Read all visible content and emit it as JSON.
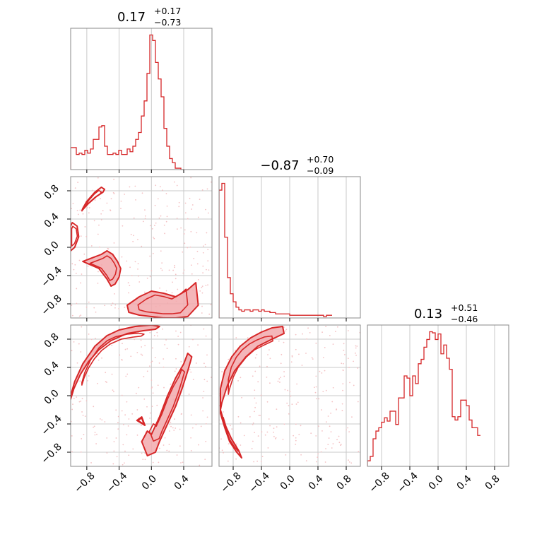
{
  "chart_data": {
    "type": "corner",
    "color": "#d62728",
    "fill_color": "#f2a9ad",
    "grid": true,
    "range": [
      -1.0,
      1.0
    ],
    "tick_labels": [
      "−0.8",
      "−0.4",
      "0.0",
      "0.4",
      "0.8"
    ],
    "tick_values": [
      -0.8,
      -0.4,
      0.0,
      0.4,
      0.8
    ],
    "panels": [
      {
        "name": "hist-param-1",
        "type": "histogram",
        "x_range": [
          -1.0,
          0.75
        ],
        "title": {
          "main": "0.17",
          "upper": "+0.17",
          "lower": "−0.73"
        },
        "bin_edges_start": -1.0,
        "bin_width": 0.035,
        "counts": [
          16,
          16,
          11,
          12,
          11,
          14,
          12,
          15,
          22,
          22,
          31,
          32,
          17,
          11,
          11,
          12,
          11,
          14,
          11,
          11,
          15,
          13,
          17,
          22,
          27,
          39,
          50,
          70,
          98,
          94,
          78,
          66,
          53,
          30,
          17,
          8,
          5,
          1,
          1,
          0
        ]
      },
      {
        "name": "hist-param-2",
        "type": "histogram",
        "x_range": [
          -1.0,
          1.0
        ],
        "title": {
          "main": "−0.87",
          "upper": "+0.70",
          "lower": "−0.09"
        },
        "bin_edges_start": -1.0,
        "bin_width": 0.04,
        "counts": [
          95,
          100,
          60,
          30,
          18,
          12,
          8,
          6,
          5,
          6,
          6,
          5,
          6,
          6,
          5,
          6,
          5,
          5,
          4,
          4,
          3,
          3,
          3,
          3,
          3,
          2,
          2,
          2,
          2,
          2,
          2,
          2,
          2,
          2,
          2,
          2,
          2,
          1,
          2,
          2
        ]
      },
      {
        "name": "hist-param-3",
        "type": "histogram",
        "x_range": [
          -1.0,
          1.0
        ],
        "title": {
          "main": "0.13",
          "upper": "+0.51",
          "lower": "−0.46"
        },
        "bin_edges_start": -1.0,
        "bin_width": 0.04,
        "counts": [
          5,
          9,
          25,
          32,
          35,
          40,
          44,
          41,
          50,
          50,
          38,
          62,
          62,
          82,
          80,
          64,
          82,
          75,
          93,
          97,
          108,
          115,
          122,
          121,
          115,
          120,
          102,
          110,
          98,
          88,
          45,
          42,
          45,
          60,
          60,
          55,
          42,
          35,
          35,
          28
        ]
      },
      {
        "name": "contour-param2-vs-param1",
        "type": "contour",
        "x_range": [
          -1.0,
          0.75
        ],
        "y_range": [
          -1.0,
          1.0
        ],
        "regions": [
          {
            "x": [
              -0.85,
              -0.75,
              -0.65,
              -0.55,
              -0.5,
              -0.45,
              -0.4,
              -0.38,
              -0.42,
              -0.48,
              -0.55,
              -0.62
            ],
            "y": [
              -0.2,
              -0.25,
              -0.3,
              -0.45,
              -0.55,
              -0.52,
              -0.42,
              -0.3,
              -0.2,
              -0.1,
              -0.05,
              -0.1
            ],
            "fill": true
          },
          {
            "x": [
              -0.3,
              -0.15,
              0.0,
              0.15,
              0.3,
              0.45,
              0.55,
              0.58,
              0.45,
              0.3,
              0.15,
              0.0,
              -0.15,
              -0.28
            ],
            "y": [
              -0.82,
              -0.7,
              -0.62,
              -0.65,
              -0.7,
              -0.6,
              -0.5,
              -0.82,
              -0.98,
              -1.0,
              -1.0,
              -0.98,
              -0.96,
              -0.92
            ],
            "fill": true
          },
          {
            "x": [
              -1.0,
              -0.95,
              -0.9,
              -0.92,
              -0.98,
              -1.0
            ],
            "y": [
              -0.05,
              0.0,
              0.15,
              0.3,
              0.35,
              0.3
            ],
            "fill": false
          },
          {
            "x": [
              -0.85,
              -0.8,
              -0.7,
              -0.62,
              -0.58,
              -0.6,
              -0.68,
              -0.78,
              -0.86
            ],
            "y": [
              0.55,
              0.65,
              0.78,
              0.85,
              0.82,
              0.78,
              0.72,
              0.62,
              0.52
            ],
            "fill": false
          }
        ],
        "samples_seed": 11
      },
      {
        "name": "contour-param3-vs-param1",
        "type": "contour",
        "x_range": [
          -1.0,
          0.75
        ],
        "y_range": [
          -1.0,
          1.0
        ],
        "regions": [
          {
            "x": [
              -1.0,
              -0.95,
              -0.85,
              -0.7,
              -0.55,
              -0.4,
              -0.2,
              0.0,
              0.1,
              0.05,
              -0.1,
              -0.3,
              -0.5,
              -0.65,
              -0.78,
              -0.88,
              -0.96,
              -1.0
            ],
            "y": [
              0.0,
              0.2,
              0.45,
              0.7,
              0.85,
              0.93,
              0.98,
              1.0,
              0.98,
              0.94,
              0.92,
              0.88,
              0.78,
              0.65,
              0.48,
              0.3,
              0.1,
              -0.05
            ],
            "fill": true
          },
          {
            "x": [
              0.0,
              0.1,
              0.2,
              0.3,
              0.4,
              0.45,
              0.5,
              0.45,
              0.38,
              0.3,
              0.2,
              0.1,
              0.05,
              -0.05,
              -0.12,
              -0.05
            ],
            "y": [
              -0.55,
              -0.3,
              0.0,
              0.25,
              0.45,
              0.6,
              0.55,
              0.35,
              0.1,
              -0.15,
              -0.4,
              -0.65,
              -0.8,
              -0.85,
              -0.65,
              -0.5
            ],
            "fill": true
          },
          {
            "x": [
              -0.18,
              -0.12,
              -0.08
            ],
            "y": [
              -0.35,
              -0.3,
              -0.42
            ],
            "fill": false
          }
        ],
        "samples_seed": 23
      },
      {
        "name": "contour-param3-vs-param2",
        "type": "contour",
        "x_range": [
          -1.0,
          1.0
        ],
        "y_range": [
          -1.0,
          1.0
        ],
        "regions": [
          {
            "x": [
              -0.98,
              -0.92,
              -0.82,
              -0.7,
              -0.55,
              -0.4,
              -0.25,
              -0.1,
              -0.08,
              -0.25,
              -0.45,
              -0.62,
              -0.78,
              -0.88,
              -0.96,
              -0.98
            ],
            "y": [
              0.1,
              0.35,
              0.55,
              0.7,
              0.82,
              0.9,
              0.96,
              0.98,
              0.88,
              0.8,
              0.7,
              0.55,
              0.35,
              0.15,
              -0.1,
              -0.2
            ],
            "fill": true
          },
          {
            "x": [
              -0.98,
              -0.92,
              -0.85,
              -0.75,
              -0.68,
              -0.72,
              -0.82,
              -0.92,
              -0.98
            ],
            "y": [
              -0.25,
              -0.45,
              -0.65,
              -0.8,
              -0.88,
              -0.78,
              -0.62,
              -0.4,
              -0.2
            ],
            "fill": true
          }
        ],
        "samples_seed": 37
      }
    ]
  }
}
